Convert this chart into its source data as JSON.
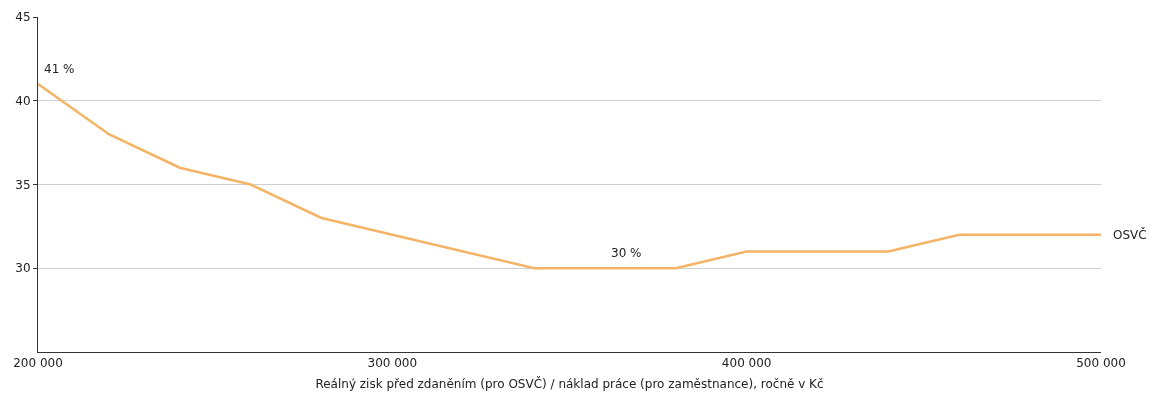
{
  "chart_data": {
    "type": "line",
    "xlabel": "Reálný zisk před zdaněním (pro OSVČ) / náklad práce (pro zaměstnance), ročně v Kč",
    "x": [
      200000,
      220000,
      240000,
      260000,
      280000,
      340000,
      380000,
      400000,
      440000,
      460000,
      500000
    ],
    "series": [
      {
        "name": "OSVČ",
        "color": "#f5b366",
        "values": [
          41,
          38,
          36,
          35,
          33,
          30,
          30,
          31,
          31,
          32,
          32
        ]
      }
    ],
    "xlim": [
      200000,
      500000
    ],
    "xticks": [
      {
        "value": 200000,
        "label": "200 000"
      },
      {
        "value": 300000,
        "label": "300 000"
      },
      {
        "value": 400000,
        "label": "400 000"
      },
      {
        "value": 500000,
        "label": "500 000"
      }
    ],
    "ylim": [
      25,
      45
    ],
    "yticks": [
      30,
      35,
      40,
      45
    ],
    "grid": "y",
    "legend": false,
    "marker": "none",
    "line_style": "solid",
    "annotations": [
      {
        "text": "41 %",
        "x": 200000,
        "y": 41
      },
      {
        "text": "30 %",
        "x": 360000,
        "y": 30
      }
    ]
  }
}
